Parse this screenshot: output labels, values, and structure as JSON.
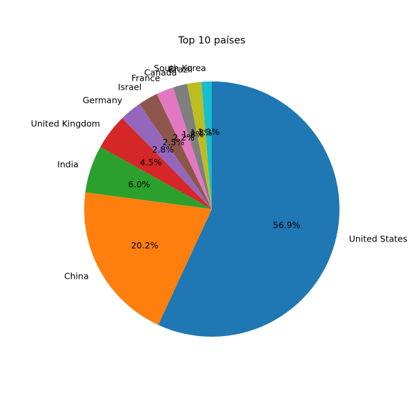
{
  "chart_data": {
    "type": "pie",
    "title": "Top 10 países",
    "categories": [
      "United States",
      "China",
      "India",
      "United Kingdom",
      "Germany",
      "Israel",
      "France",
      "Canada",
      "Brazil",
      "South Korea"
    ],
    "values": [
      56.9,
      20.2,
      6.0,
      4.5,
      2.8,
      2.5,
      2.2,
      1.8,
      1.8,
      1.3
    ],
    "labels": [
      "56.9%",
      "20.2%",
      "6.0%",
      "4.5%",
      "2.8%",
      "2.5%",
      "2.2%",
      "1.8%",
      "1.8%",
      "1.3%"
    ],
    "colors": [
      "#1f77b4",
      "#ff7f0e",
      "#2ca02c",
      "#d62728",
      "#9467bd",
      "#8c564b",
      "#e377c2",
      "#7f7f7f",
      "#bcbd22",
      "#17becf"
    ],
    "start_angle": 90,
    "direction": "clockwise",
    "legend": "none"
  }
}
